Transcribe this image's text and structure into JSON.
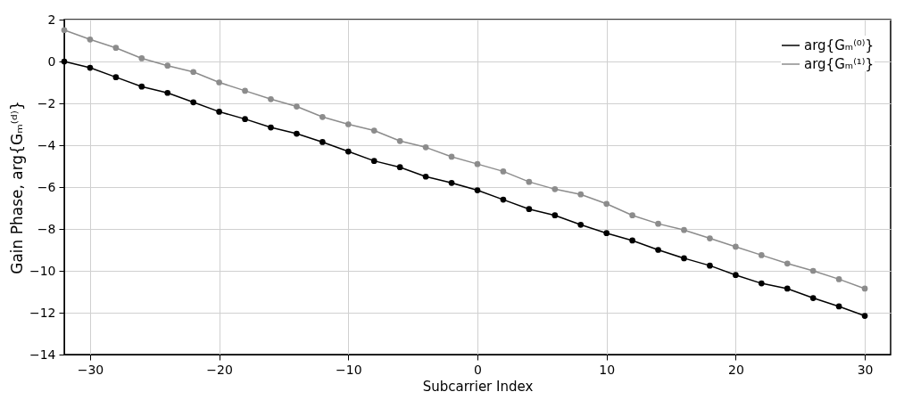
{
  "chart_data": {
    "type": "line",
    "xlabel": "Subcarrier Index",
    "ylabel": "Gain Phase, arg{Gₘ⁽ᵈ⁾}",
    "x": [
      -32,
      -30,
      -28,
      -26,
      -24,
      -22,
      -20,
      -18,
      -16,
      -14,
      -12,
      -10,
      -8,
      -6,
      -4,
      -2,
      0,
      2,
      4,
      6,
      8,
      10,
      12,
      14,
      16,
      18,
      20,
      22,
      24,
      26,
      28,
      30
    ],
    "series": [
      {
        "name": "arg{Gₘ⁽⁰⁾}",
        "color": "#000000",
        "values": [
          0,
          -0.3,
          -0.75,
          -1.2,
          -1.5,
          -1.95,
          -2.4,
          -2.75,
          -3.15,
          -3.45,
          -3.85,
          -4.3,
          -4.75,
          -5.05,
          -5.5,
          -5.8,
          -6.15,
          -6.6,
          -7.05,
          -7.35,
          -7.8,
          -8.2,
          -8.55,
          -9.0,
          -9.4,
          -9.75,
          -10.2,
          -10.6,
          -10.85,
          -11.3,
          -11.7,
          -12.15
        ]
      },
      {
        "name": "arg{Gₘ⁽¹⁾}",
        "color": "#8c8c8c",
        "values": [
          1.5,
          1.05,
          0.65,
          0.15,
          -0.2,
          -0.5,
          -1.0,
          -1.4,
          -1.8,
          -2.15,
          -2.65,
          -3.0,
          -3.3,
          -3.8,
          -4.1,
          -4.55,
          -4.9,
          -5.25,
          -5.75,
          -6.1,
          -6.35,
          -6.8,
          -7.35,
          -7.75,
          -8.05,
          -8.45,
          -8.85,
          -9.25,
          -9.65,
          -10.0,
          -10.4,
          -10.85
        ]
      }
    ],
    "xlim": [
      -32,
      32
    ],
    "xticks": [
      -30,
      -20,
      -10,
      0,
      10,
      20,
      30
    ],
    "ylim": [
      -14,
      2
    ],
    "yticks": [
      -14,
      -12,
      -10,
      -8,
      -6,
      -4,
      -2,
      0,
      2
    ],
    "grid": true,
    "legend": "top right",
    "marker": "circle",
    "line_style": "solid"
  }
}
